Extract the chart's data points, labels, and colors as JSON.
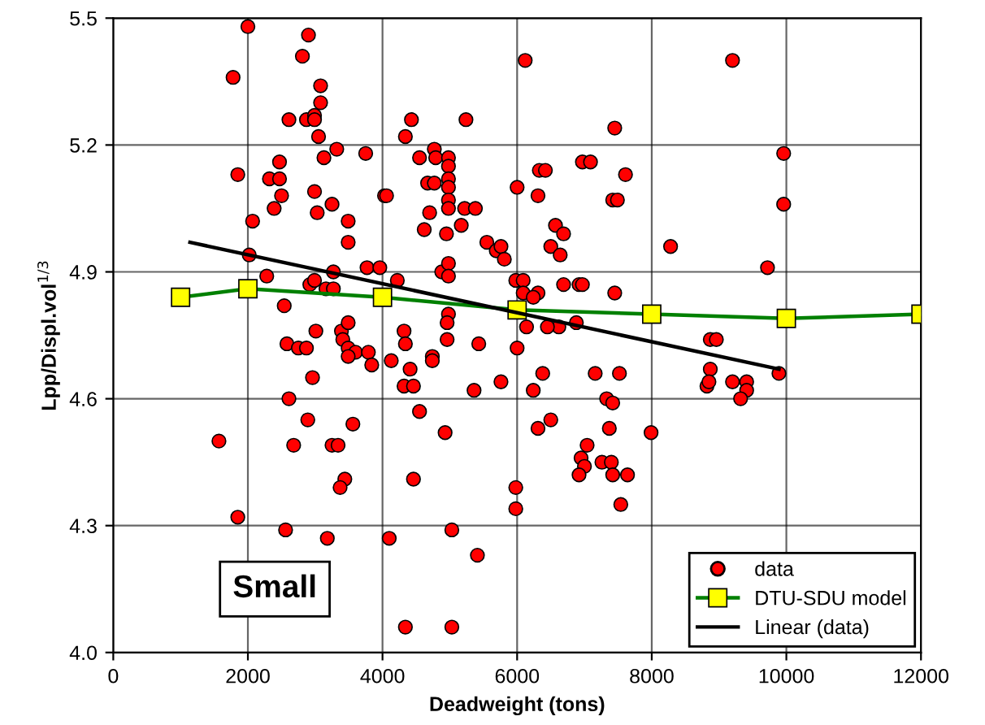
{
  "chart_data": {
    "type": "scatter",
    "xlabel": "Deadweight (tons)",
    "ylabel": "Lpp/Displ.vol$^{1/3}$",
    "xlim": [
      0,
      12000
    ],
    "ylim": [
      4.0,
      5.5
    ],
    "xticks": [
      0,
      2000,
      4000,
      6000,
      8000,
      10000,
      12000
    ],
    "yticks": [
      {
        "value": 4.0,
        "label": "4.0"
      },
      {
        "value": 4.3,
        "label": "4.3"
      },
      {
        "value": 4.6,
        "label": "4.6"
      },
      {
        "value": 4.9,
        "label": "4.9"
      },
      {
        "value": 5.2,
        "label": "5.2"
      },
      {
        "value": 5.5,
        "label": "5.5"
      }
    ],
    "grid": true,
    "legend": "bottom right",
    "annotations": [
      "Small"
    ],
    "series": [
      {
        "name": "data",
        "marker": "circle",
        "color": "#ff0000",
        "x": [
          2000,
          2900,
          2810,
          1780,
          3080,
          3080,
          2610,
          2870,
          2990,
          2990,
          3050,
          3320,
          3750,
          1850,
          2470,
          2320,
          2470,
          2500,
          2390,
          2990,
          3030,
          3250,
          3130,
          3490,
          3490,
          2070,
          2020,
          2280,
          2920,
          2990,
          3160,
          3270,
          3270,
          3770,
          3960,
          4030,
          2540,
          6120,
          4430,
          5240,
          4340,
          7450,
          4550,
          4770,
          4790,
          4980,
          4980,
          4980,
          4980,
          4670,
          4770,
          4980,
          4060,
          6000,
          6330,
          6420,
          6970,
          7090,
          7610,
          6310,
          7420,
          7490,
          4700,
          4980,
          5220,
          5380,
          4620,
          4950,
          5170,
          6570,
          6690,
          6500,
          6640,
          5550,
          5690,
          5760,
          5810,
          4880,
          4980,
          4980,
          4220,
          5980,
          6090,
          6090,
          6310,
          6690,
          6920,
          6970,
          7450,
          6240,
          3010,
          2580,
          2750,
          2870,
          3390,
          3490,
          3410,
          3490,
          3600,
          3790,
          3840,
          3490,
          2960,
          2610,
          2890,
          3560,
          1570,
          2680,
          3250,
          3340,
          3440,
          3370,
          1850,
          2560,
          3180,
          4980,
          4960,
          4960,
          4320,
          4340,
          4130,
          4740,
          4740,
          4410,
          4320,
          4460,
          5430,
          6000,
          6140,
          5760,
          5360,
          6380,
          6240,
          7160,
          7520,
          7330,
          7420,
          7370,
          4550,
          4930,
          6310,
          6500,
          7040,
          6950,
          7000,
          6920,
          7260,
          7400,
          7420,
          7640,
          4460,
          5980,
          5980,
          7540,
          5030,
          4100,
          5410,
          6880,
          6620,
          6450,
          4340,
          5030,
          9200,
          9960,
          9960,
          8280,
          9720,
          8870,
          8960,
          8870,
          8820,
          8850,
          9200,
          9410,
          9410,
          9320,
          9890,
          7990
        ],
        "values": [
          5.48,
          5.46,
          5.41,
          5.36,
          5.34,
          5.3,
          5.26,
          5.26,
          5.27,
          5.26,
          5.22,
          5.19,
          5.18,
          5.13,
          5.16,
          5.12,
          5.12,
          5.08,
          5.05,
          5.09,
          5.04,
          5.06,
          5.17,
          5.02,
          4.97,
          5.02,
          4.94,
          4.89,
          4.87,
          4.88,
          4.86,
          4.86,
          4.9,
          4.91,
          4.91,
          5.08,
          4.82,
          5.4,
          5.26,
          5.26,
          5.22,
          5.24,
          5.17,
          5.19,
          5.17,
          5.17,
          5.15,
          5.12,
          5.1,
          5.11,
          5.11,
          5.07,
          5.08,
          5.1,
          5.14,
          5.14,
          5.16,
          5.16,
          5.13,
          5.08,
          5.07,
          5.07,
          5.04,
          5.05,
          5.05,
          5.05,
          5.0,
          4.99,
          5.01,
          5.01,
          4.99,
          4.96,
          4.94,
          4.97,
          4.95,
          4.96,
          4.93,
          4.9,
          4.92,
          4.89,
          4.88,
          4.88,
          4.88,
          4.85,
          4.85,
          4.87,
          4.87,
          4.87,
          4.85,
          4.84,
          4.76,
          4.73,
          4.72,
          4.72,
          4.76,
          4.78,
          4.74,
          4.72,
          4.71,
          4.71,
          4.68,
          4.7,
          4.65,
          4.6,
          4.55,
          4.54,
          4.5,
          4.49,
          4.49,
          4.49,
          4.41,
          4.39,
          4.32,
          4.29,
          4.27,
          4.8,
          4.78,
          4.74,
          4.76,
          4.73,
          4.69,
          4.7,
          4.69,
          4.67,
          4.63,
          4.63,
          4.73,
          4.72,
          4.77,
          4.64,
          4.62,
          4.66,
          4.62,
          4.66,
          4.66,
          4.6,
          4.59,
          4.53,
          4.57,
          4.52,
          4.53,
          4.55,
          4.49,
          4.46,
          4.44,
          4.42,
          4.45,
          4.45,
          4.42,
          4.42,
          4.41,
          4.39,
          4.34,
          4.35,
          4.29,
          4.27,
          4.23,
          4.78,
          4.77,
          4.77,
          4.06,
          4.06,
          5.4,
          5.18,
          5.06,
          4.96,
          4.91,
          4.74,
          4.74,
          4.67,
          4.63,
          4.64,
          4.64,
          4.64,
          4.62,
          4.6,
          4.66,
          4.52
        ]
      },
      {
        "name": "DTU-SDU model",
        "type": "line",
        "marker": "square",
        "line_style": "solid",
        "color": "#008000",
        "x": [
          1000,
          2000,
          4000,
          6000,
          8000,
          10000,
          12000
        ],
        "values": [
          4.84,
          4.86,
          4.84,
          4.81,
          4.8,
          4.79,
          4.8
        ]
      },
      {
        "name": "Linear (data)",
        "type": "line",
        "marker": "none",
        "line_style": "solid",
        "color": "#000000",
        "x": [
          1140,
          9890
        ],
        "values": [
          4.97,
          4.67
        ]
      }
    ]
  }
}
